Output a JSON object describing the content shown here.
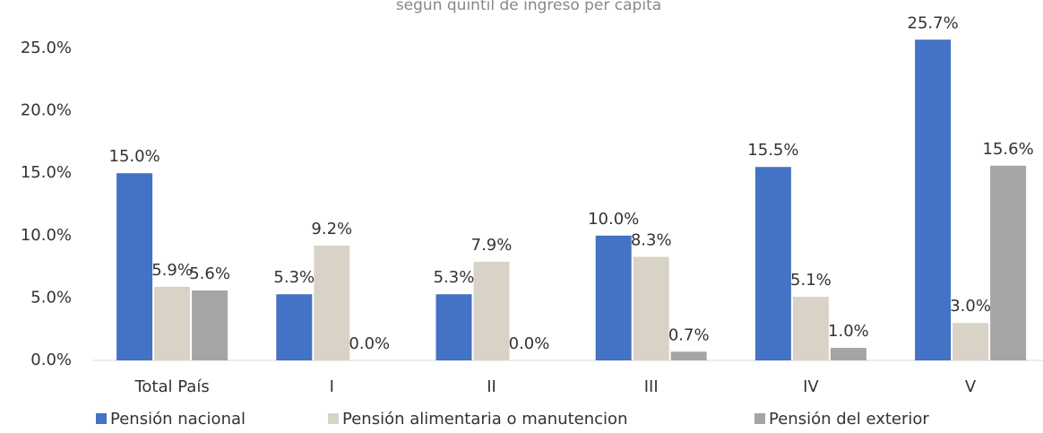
{
  "chart_data": {
    "type": "bar",
    "subtitle": "según quintil de ingreso per cápita",
    "categories": [
      "Total País",
      "I",
      "II",
      "III",
      "IV",
      "V"
    ],
    "series": [
      {
        "name": "Pensión nacional",
        "color": "#4472c4",
        "values": [
          15.0,
          5.3,
          5.3,
          10.0,
          15.5,
          25.7
        ],
        "value_labels": [
          "15.0%",
          "5.3%",
          "5.3%",
          "10.0%",
          "15.5%",
          "25.7%"
        ]
      },
      {
        "name": "Pensión alimentaria o manutencion",
        "color": "#d9d3c7",
        "values": [
          5.9,
          9.2,
          7.9,
          8.3,
          5.1,
          3.0
        ],
        "value_labels": [
          "5.9%",
          "9.2%",
          "7.9%",
          "8.3%",
          "5.1%",
          "3.0%"
        ]
      },
      {
        "name": "Pensión del exterior",
        "color": "#a5a5a5",
        "values": [
          5.6,
          0.0,
          0.0,
          0.7,
          1.0,
          15.6
        ],
        "value_labels": [
          "5.6%",
          "0.0%",
          "0.0%",
          "0.7%",
          "1.0%",
          "15.6%"
        ]
      }
    ],
    "ylim": [
      0,
      27
    ],
    "yticks": [
      {
        "value": 0,
        "label": "0.0%"
      },
      {
        "value": 5,
        "label": "5.0%"
      },
      {
        "value": 10,
        "label": "10.0%"
      },
      {
        "value": 15,
        "label": "15.0%"
      },
      {
        "value": 20,
        "label": "20.0%"
      },
      {
        "value": 25,
        "label": "25.0%"
      }
    ],
    "legend": "bottom"
  }
}
